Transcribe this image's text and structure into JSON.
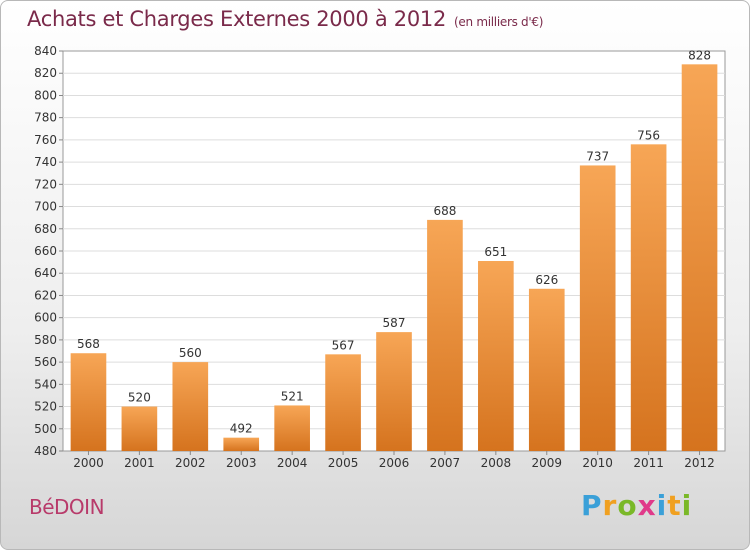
{
  "header": {
    "title": "Achats et Charges Externes 2000 à 2012",
    "subtitle": "(en milliers d'€)"
  },
  "footer": {
    "commune": "BéDOIN",
    "logo_letters": [
      "P",
      "r",
      "o",
      "x",
      "i",
      "t",
      "i"
    ],
    "logo_colors": [
      "#3aa0d8",
      "#f0a020",
      "#7ab828",
      "#e03a8a",
      "#3aa0d8",
      "#f0a020",
      "#7ab828"
    ]
  },
  "chart_data": {
    "type": "bar",
    "categories": [
      "2000",
      "2001",
      "2002",
      "2003",
      "2004",
      "2005",
      "2006",
      "2007",
      "2008",
      "2009",
      "2010",
      "2011",
      "2012"
    ],
    "values": [
      568,
      520,
      560,
      492,
      521,
      567,
      587,
      688,
      651,
      626,
      737,
      756,
      828
    ],
    "ylim": [
      480,
      840
    ],
    "yticks": [
      480,
      500,
      520,
      540,
      560,
      580,
      600,
      620,
      640,
      660,
      680,
      700,
      720,
      740,
      760,
      780,
      800,
      820,
      840
    ],
    "grid": true,
    "bar_color_light": "#f7a656",
    "bar_color_dark": "#d5731e"
  }
}
